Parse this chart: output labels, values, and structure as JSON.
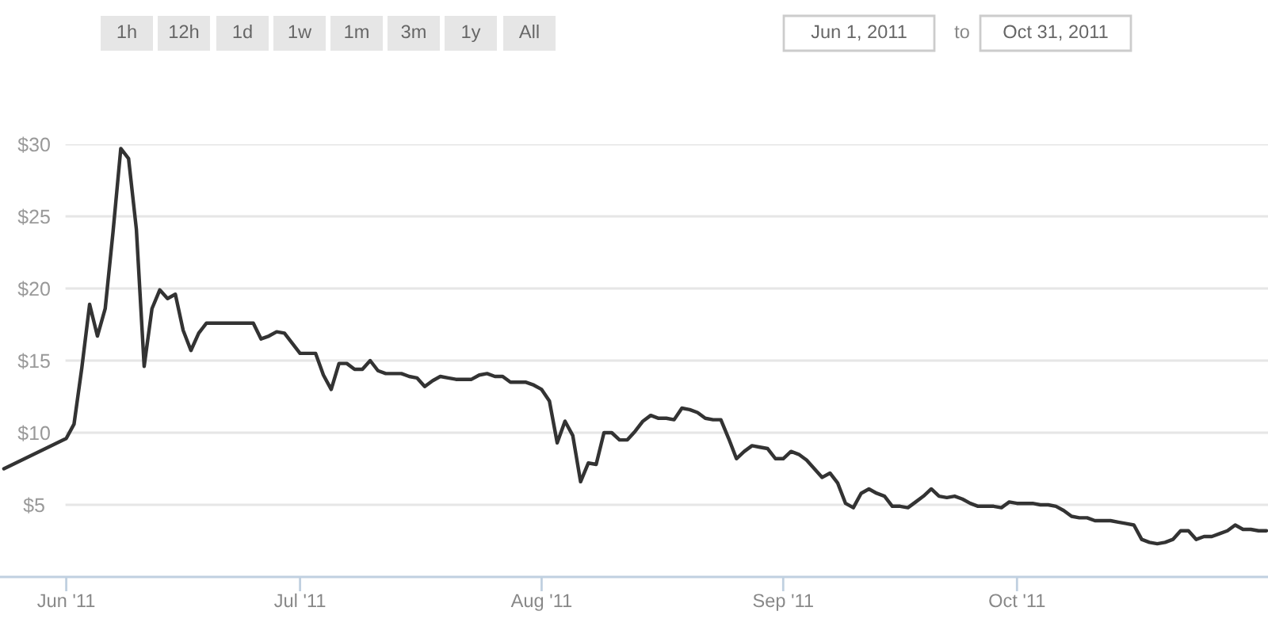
{
  "chart_data": {
    "type": "line",
    "x": [
      "2011-05-24",
      "2011-06-01",
      "2011-06-02",
      "2011-06-03",
      "2011-06-04",
      "2011-06-05",
      "2011-06-06",
      "2011-06-07",
      "2011-06-08",
      "2011-06-09",
      "2011-06-10",
      "2011-06-11",
      "2011-06-12",
      "2011-06-13",
      "2011-06-14",
      "2011-06-15",
      "2011-06-16",
      "2011-06-17",
      "2011-06-18",
      "2011-06-19",
      "2011-06-20",
      "2011-06-21",
      "2011-06-22",
      "2011-06-23",
      "2011-06-24",
      "2011-06-25",
      "2011-06-26",
      "2011-06-27",
      "2011-06-28",
      "2011-06-29",
      "2011-06-30",
      "2011-07-01",
      "2011-07-02",
      "2011-07-03",
      "2011-07-04",
      "2011-07-05",
      "2011-07-06",
      "2011-07-07",
      "2011-07-08",
      "2011-07-09",
      "2011-07-10",
      "2011-07-11",
      "2011-07-12",
      "2011-07-13",
      "2011-07-14",
      "2011-07-15",
      "2011-07-16",
      "2011-07-17",
      "2011-07-18",
      "2011-07-19",
      "2011-07-20",
      "2011-07-21",
      "2011-07-22",
      "2011-07-23",
      "2011-07-24",
      "2011-07-25",
      "2011-07-26",
      "2011-07-27",
      "2011-07-28",
      "2011-07-29",
      "2011-07-30",
      "2011-07-31",
      "2011-08-01",
      "2011-08-02",
      "2011-08-03",
      "2011-08-04",
      "2011-08-05",
      "2011-08-06",
      "2011-08-07",
      "2011-08-08",
      "2011-08-09",
      "2011-08-10",
      "2011-08-11",
      "2011-08-12",
      "2011-08-13",
      "2011-08-14",
      "2011-08-15",
      "2011-08-16",
      "2011-08-17",
      "2011-08-18",
      "2011-08-19",
      "2011-08-20",
      "2011-08-21",
      "2011-08-22",
      "2011-08-23",
      "2011-08-24",
      "2011-08-25",
      "2011-08-26",
      "2011-08-27",
      "2011-08-28",
      "2011-08-29",
      "2011-08-30",
      "2011-08-31",
      "2011-09-01",
      "2011-09-02",
      "2011-09-03",
      "2011-09-04",
      "2011-09-05",
      "2011-09-06",
      "2011-09-07",
      "2011-09-08",
      "2011-09-09",
      "2011-09-10",
      "2011-09-11",
      "2011-09-12",
      "2011-09-13",
      "2011-09-14",
      "2011-09-15",
      "2011-09-16",
      "2011-09-17",
      "2011-09-18",
      "2011-09-19",
      "2011-09-20",
      "2011-09-21",
      "2011-09-22",
      "2011-09-23",
      "2011-09-24",
      "2011-09-25",
      "2011-09-26",
      "2011-09-27",
      "2011-09-28",
      "2011-09-29",
      "2011-09-30",
      "2011-10-01",
      "2011-10-02",
      "2011-10-03",
      "2011-10-04",
      "2011-10-05",
      "2011-10-06",
      "2011-10-07",
      "2011-10-08",
      "2011-10-09",
      "2011-10-10",
      "2011-10-11",
      "2011-10-12",
      "2011-10-13",
      "2011-10-14",
      "2011-10-15",
      "2011-10-16",
      "2011-10-17",
      "2011-10-18",
      "2011-10-19",
      "2011-10-20",
      "2011-10-21",
      "2011-10-22",
      "2011-10-23",
      "2011-10-24",
      "2011-10-25",
      "2011-10-26",
      "2011-10-27",
      "2011-10-28",
      "2011-10-29",
      "2011-10-30",
      "2011-10-31",
      "2011-11-01",
      "2011-11-02"
    ],
    "series": [
      {
        "color": "#333333",
        "values": [
          7.5,
          9.6,
          10.6,
          14.5,
          18.9,
          16.7,
          18.6,
          23.9,
          29.7,
          29.0,
          24.1,
          14.6,
          18.6,
          19.9,
          19.3,
          19.6,
          17.1,
          15.7,
          16.9,
          17.6,
          17.6,
          17.6,
          17.6,
          17.6,
          17.6,
          17.6,
          16.5,
          16.7,
          17.0,
          16.9,
          16.2,
          15.5,
          15.5,
          15.5,
          14.0,
          13.0,
          14.8,
          14.8,
          14.4,
          14.4,
          15.0,
          14.3,
          14.1,
          14.1,
          14.1,
          13.9,
          13.8,
          13.2,
          13.6,
          13.9,
          13.8,
          13.7,
          13.7,
          13.7,
          14.0,
          14.1,
          13.9,
          13.9,
          13.5,
          13.5,
          13.5,
          13.3,
          13.0,
          12.2,
          9.3,
          10.8,
          9.8,
          6.6,
          7.9,
          7.8,
          10.0,
          10.0,
          9.5,
          9.5,
          10.1,
          10.8,
          11.2,
          11.0,
          11.0,
          10.9,
          11.7,
          11.6,
          11.4,
          11.0,
          10.9,
          10.9,
          9.6,
          8.2,
          8.7,
          9.1,
          9.0,
          8.9,
          8.2,
          8.2,
          8.7,
          8.5,
          8.1,
          7.5,
          6.9,
          7.2,
          6.5,
          5.1,
          4.8,
          5.8,
          6.1,
          5.8,
          5.6,
          4.9,
          4.9,
          4.8,
          5.2,
          5.6,
          6.1,
          5.6,
          5.5,
          5.6,
          5.4,
          5.1,
          4.9,
          4.9,
          4.9,
          4.8,
          5.2,
          5.1,
          5.1,
          5.1,
          5.0,
          5.0,
          4.9,
          4.6,
          4.2,
          4.1,
          4.1,
          3.9,
          3.9,
          3.9,
          3.8,
          3.7,
          3.6,
          2.6,
          2.4,
          2.3,
          2.4,
          2.6,
          3.2,
          3.2,
          2.6,
          2.8,
          2.8,
          3.0,
          3.2,
          3.6,
          3.3,
          3.3,
          3.2,
          3.2
        ]
      }
    ],
    "xlim": [
      "2011-05-23T12:00",
      "2011-11-02T05:00"
    ],
    "xticks": [
      {
        "value": "2011-06-01",
        "label": "Jun '11"
      },
      {
        "value": "2011-07-01",
        "label": "Jul '11"
      },
      {
        "value": "2011-08-01",
        "label": "Aug '11"
      },
      {
        "value": "2011-09-01",
        "label": "Sep '11"
      },
      {
        "value": "2011-10-01",
        "label": "Oct '11"
      }
    ],
    "ylim": [
      0,
      30
    ],
    "yticks": [
      {
        "value": 5,
        "label": "$5"
      },
      {
        "value": 10,
        "label": "$10"
      },
      {
        "value": 15,
        "label": "$15"
      },
      {
        "value": 20,
        "label": "$20"
      },
      {
        "value": 25,
        "label": "$25"
      },
      {
        "value": 30,
        "label": "$30"
      }
    ],
    "grid": "y",
    "line_style": "solid",
    "annotations": [
      "1h",
      "12h",
      "1d",
      "1w",
      "1m",
      "3m",
      "1y",
      "All",
      "Jun 1, 2011",
      "to",
      "Oct 31, 2011"
    ]
  }
}
